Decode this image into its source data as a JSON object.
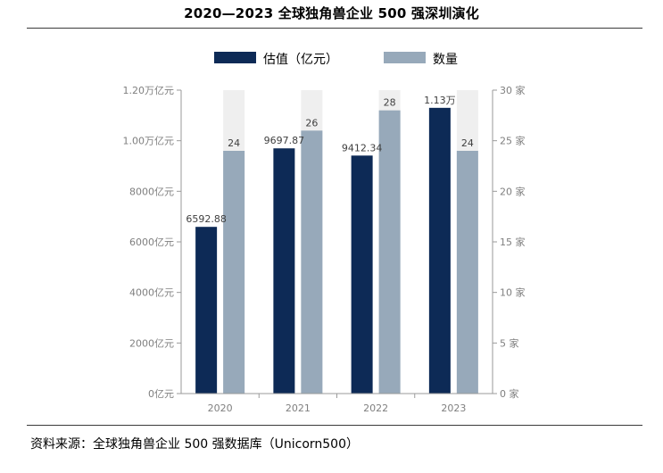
{
  "page": {
    "title": "2020—2023 全球独角兽企业 500 强深圳演化",
    "source": "资料来源：全球独角兽企业 500 强数据库（Unicorn500）"
  },
  "colors": {
    "valuation": "#0d2a56",
    "count": "#97a9ba",
    "track": "#efefef",
    "axis": "#9a9a9a",
    "tick_text": "#7f7f7f",
    "label_text": "#404040"
  },
  "chart_data": {
    "type": "bar",
    "title": "",
    "categories": [
      "2020",
      "2021",
      "2022",
      "2023"
    ],
    "series": [
      {
        "name": "估值（亿元）",
        "axis": "left",
        "values": [
          6592.88,
          9697.87,
          9412.34,
          11300
        ],
        "labels": [
          "6592.88",
          "9697.87",
          "9412.34",
          "1.13万"
        ]
      },
      {
        "name": "数量",
        "axis": "right",
        "values": [
          24,
          26,
          28,
          24
        ],
        "labels": [
          "24",
          "26",
          "28",
          "24"
        ]
      }
    ],
    "y_left": {
      "lim": [
        0,
        12000
      ],
      "ticks": [
        0,
        2000,
        4000,
        6000,
        8000,
        10000,
        12000
      ],
      "tick_labels": [
        "0亿元",
        "2000亿元",
        "4000亿元",
        "6000亿元",
        "8000亿元",
        "1.00万亿元",
        "1.20万亿元"
      ]
    },
    "y_right": {
      "lim": [
        0,
        30
      ],
      "ticks": [
        0,
        5,
        10,
        15,
        20,
        25,
        30
      ],
      "tick_labels": [
        "0 家",
        "5 家",
        "10 家",
        "15 家",
        "20 家",
        "25 家",
        "30 家"
      ]
    },
    "count_track_max": 30,
    "grid": false,
    "legend_position": "top-center"
  }
}
